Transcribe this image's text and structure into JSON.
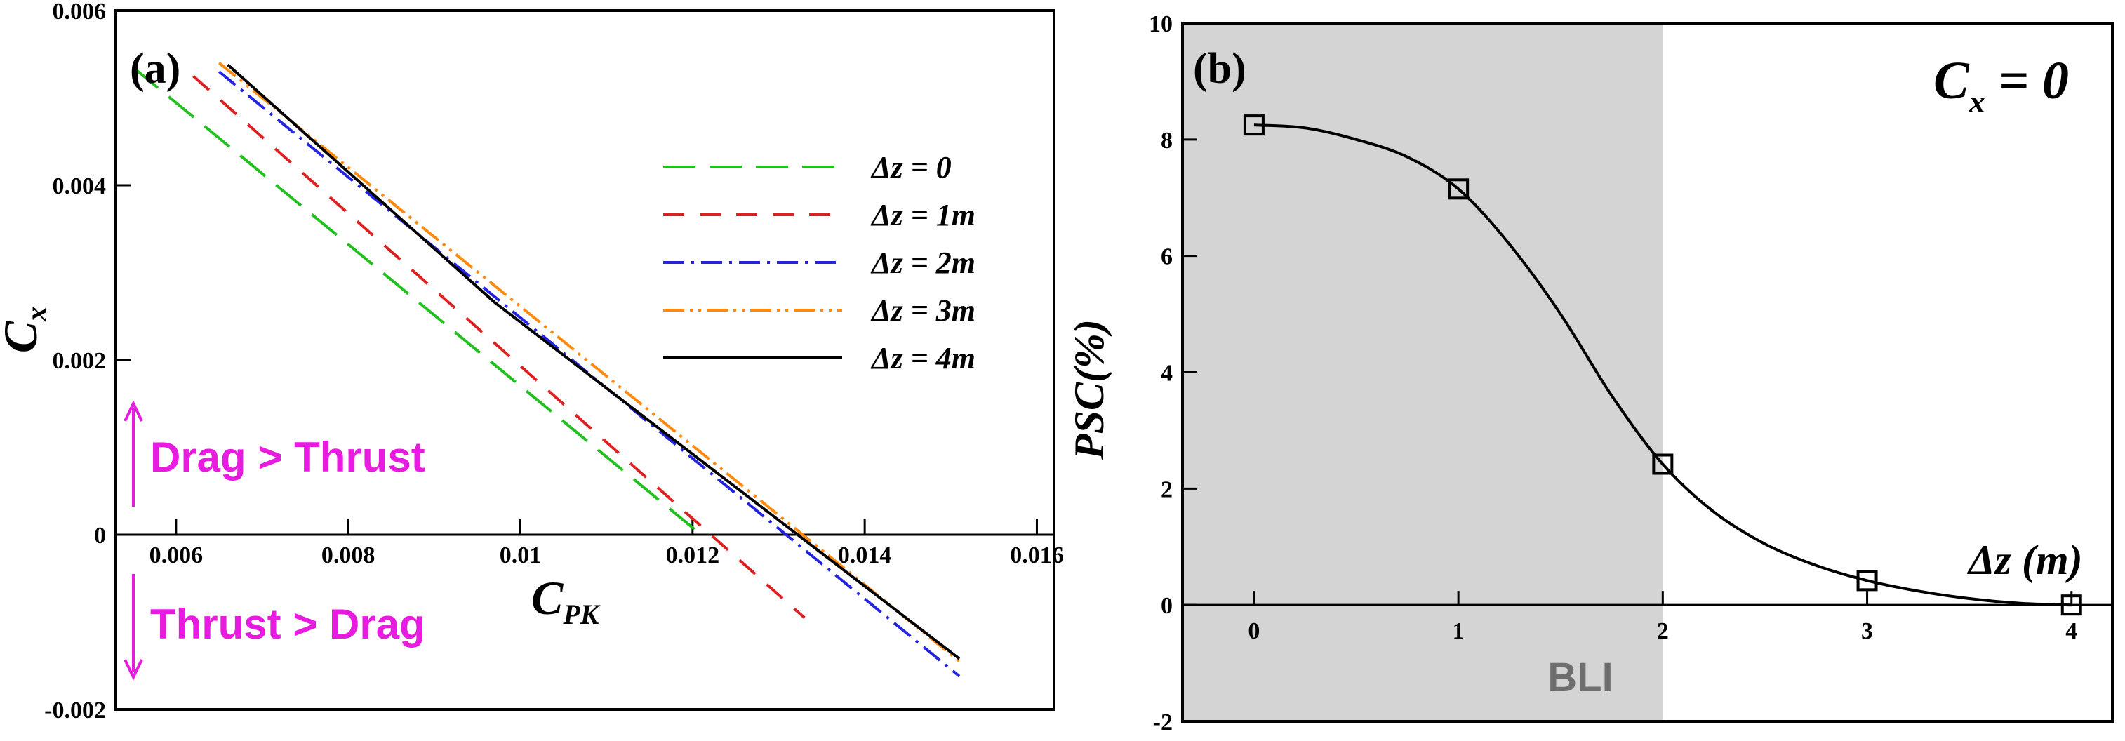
{
  "chart_data": [
    {
      "type": "line",
      "panel_label": "(a)",
      "xlabel": {
        "main": "C",
        "sub": "PK"
      },
      "ylabel": {
        "main": "C",
        "sub": "x"
      },
      "xlim": [
        0.0053,
        0.0162
      ],
      "ylim": [
        -0.002,
        0.006
      ],
      "xticks": [
        0.006,
        0.008,
        0.01,
        0.012,
        0.014,
        0.016
      ],
      "xtick_labels": [
        "0.006",
        "0.008",
        "0.01",
        "0.012",
        "0.014",
        "0.016"
      ],
      "yticks": [
        -0.002,
        0,
        0.002,
        0.004,
        0.006
      ],
      "ytick_labels": [
        "-0.002",
        "0",
        "0.002",
        "0.004",
        "0.006"
      ],
      "legend_position": "top-right",
      "series": [
        {
          "name": "Δz = 0",
          "color": "#22c01e",
          "dash": "46,20",
          "x": [
            0.0055,
            0.0121
          ],
          "y": [
            0.00535,
            0.0
          ]
        },
        {
          "name": "Δz = 1m",
          "color": "#dd2020",
          "dash": "30,22",
          "x": [
            0.0062,
            0.0133
          ],
          "y": [
            0.00525,
            -0.00095
          ]
        },
        {
          "name": "Δz = 2m",
          "color": "#2424e0",
          "dash": "30,10,4,10",
          "x": [
            0.0065,
            0.0151
          ],
          "y": [
            0.0053,
            -0.00162
          ]
        },
        {
          "name": "Δz = 3m",
          "color": "#ff8a10",
          "dash": "30,8,4,8,4,8",
          "x": [
            0.0065,
            0.0151
          ],
          "y": [
            0.0054,
            -0.00145
          ]
        },
        {
          "name": "Δz = 4m",
          "color": "#000000",
          "dash": "",
          "x": [
            0.0066,
            0.0097,
            0.0151
          ],
          "y": [
            0.00538,
            0.00266,
            -0.00142
          ]
        }
      ],
      "annotations": {
        "upper": "Drag > Thrust",
        "lower": "Thrust > Drag",
        "color": "#e81ce0"
      }
    },
    {
      "type": "line",
      "panel_label": "(b)",
      "title_annotation": {
        "main": "C",
        "sub": "x",
        "tail": " = 0"
      },
      "xlabel": "Δz (m)",
      "ylabel": "PSC(%)",
      "xlim": [
        -0.35,
        4.2
      ],
      "ylim": [
        -2,
        10
      ],
      "xticks": [
        0,
        1,
        2,
        3,
        4
      ],
      "xtick_labels": [
        "0",
        "1",
        "2",
        "3",
        "4"
      ],
      "yticks": [
        -2,
        0,
        2,
        4,
        6,
        8,
        10
      ],
      "ytick_labels": [
        "-2",
        "0",
        "2",
        "4",
        "6",
        "8",
        "10"
      ],
      "shaded_region": {
        "x": [
          -0.35,
          2.0
        ],
        "label": "BLI",
        "color": "#d4d4d4"
      },
      "markers": {
        "x": [
          0,
          1,
          2,
          3,
          4
        ],
        "y": [
          8.25,
          7.15,
          2.42,
          0.42,
          0.0
        ]
      },
      "curve": {
        "x": [
          0,
          0.25,
          0.5,
          0.75,
          1.0,
          1.25,
          1.5,
          1.75,
          2.0,
          2.25,
          2.5,
          2.75,
          3.0,
          3.25,
          3.5,
          3.75,
          4.0
        ],
        "y": [
          8.25,
          8.2,
          8.0,
          7.7,
          7.15,
          6.2,
          5.0,
          3.6,
          2.42,
          1.6,
          1.05,
          0.68,
          0.42,
          0.24,
          0.11,
          0.03,
          0.0
        ]
      }
    }
  ]
}
